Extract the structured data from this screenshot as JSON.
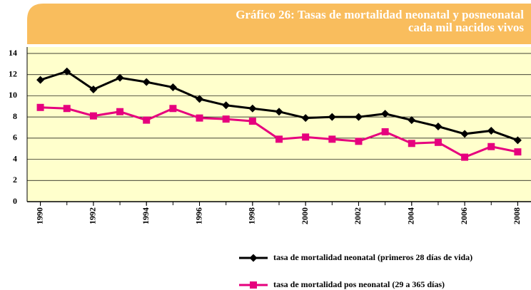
{
  "chart_data": {
    "type": "line",
    "title": [
      "Gráfico 26: Tasas de mortalidad neonatal y posneonatal",
      "cada mil nacidos vivos"
    ],
    "x": [
      1990,
      1991,
      1992,
      1993,
      1994,
      1995,
      1996,
      1997,
      1998,
      1999,
      2000,
      2001,
      2002,
      2003,
      2004,
      2005,
      2006,
      2007,
      2008
    ],
    "xlim": [
      1989.5,
      2008.5
    ],
    "xticks": [
      1990,
      1992,
      1994,
      1996,
      1998,
      2000,
      2002,
      2004,
      2006,
      2008
    ],
    "ylim": [
      0,
      14
    ],
    "yticks": [
      0,
      2,
      4,
      6,
      8,
      10,
      12,
      14
    ],
    "grid": true,
    "legend": "bottom-right",
    "series": [
      {
        "name": "tasa de mortalidad neonatal (primeros 28 días de vida)",
        "color": "#000000",
        "marker": "diamond",
        "values": [
          11.5,
          12.3,
          10.6,
          11.7,
          11.3,
          10.8,
          9.7,
          9.1,
          8.8,
          8.5,
          7.9,
          8.0,
          8.0,
          8.3,
          7.7,
          7.1,
          6.4,
          6.7,
          5.8
        ]
      },
      {
        "name": "tasa de mortalidad pos neonatal (29 a 365 días)",
        "color": "#e6007e",
        "marker": "square",
        "values": [
          8.9,
          8.8,
          8.1,
          8.5,
          7.7,
          8.8,
          7.9,
          7.8,
          7.6,
          5.9,
          6.1,
          5.9,
          5.7,
          6.6,
          5.5,
          5.6,
          4.2,
          5.2,
          4.7
        ]
      }
    ]
  }
}
